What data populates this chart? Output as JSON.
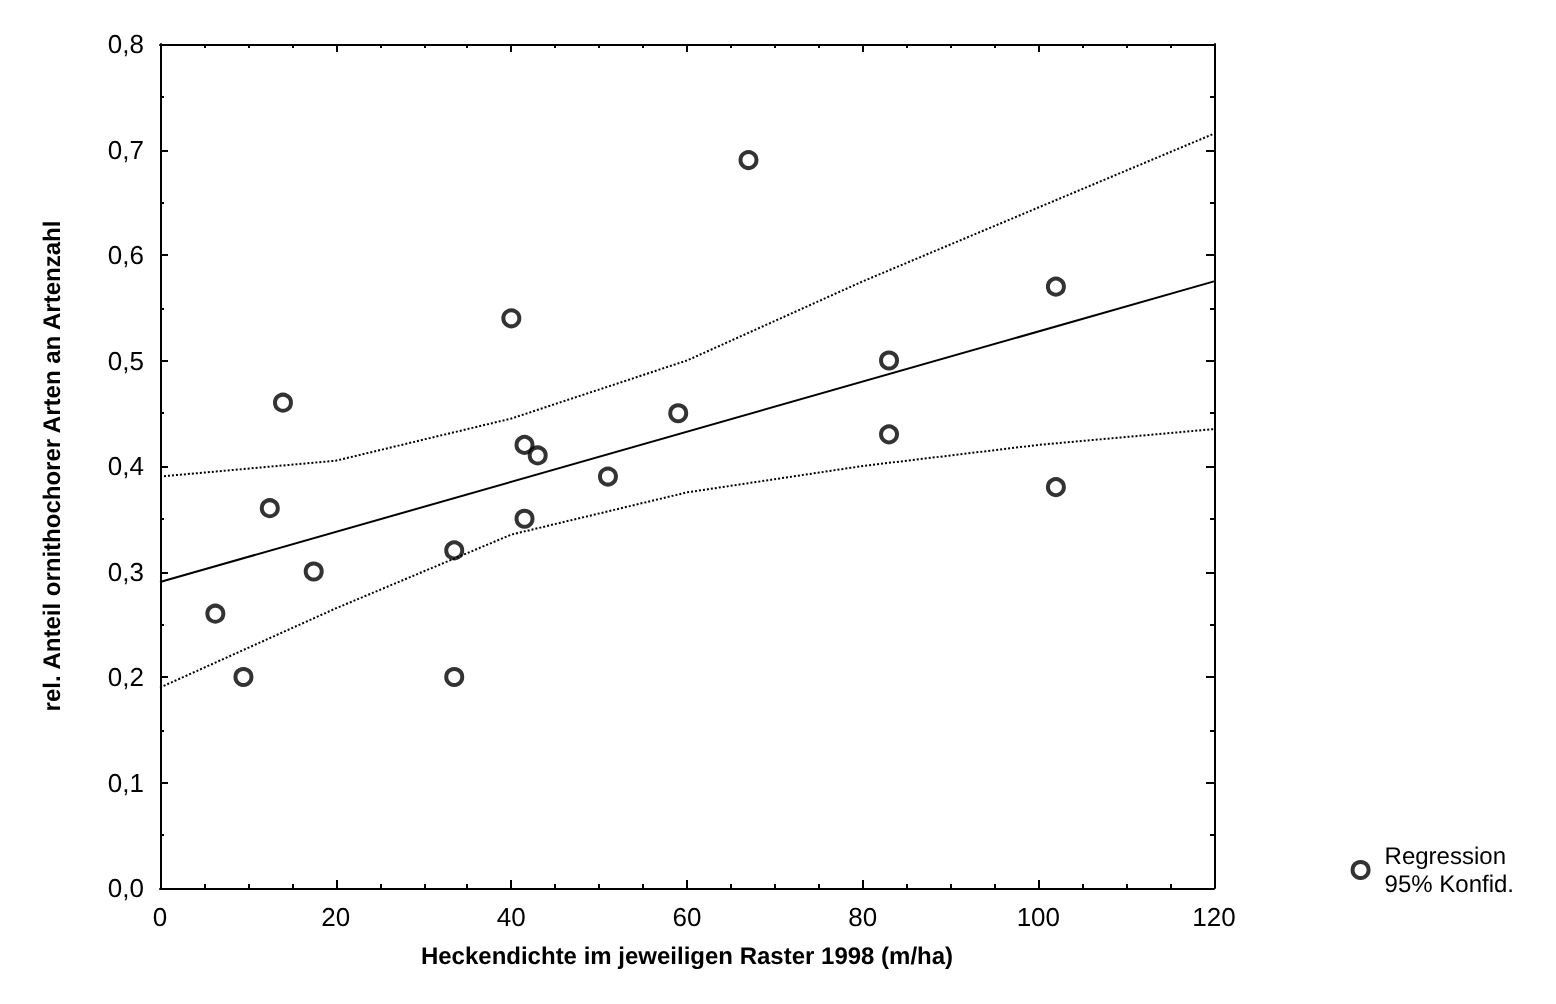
{
  "chart_data": {
    "type": "scatter",
    "xlabel": "Heckendichte im jeweiligen Raster 1998 (m/ha)",
    "ylabel": "rel. Anteil ornithochorer Arten an Artenzahl",
    "xlim": [
      0,
      120
    ],
    "xticks": [
      0,
      20,
      40,
      60,
      80,
      100,
      120
    ],
    "ylim": [
      0,
      0.8
    ],
    "yticks": [
      {
        "value": 0,
        "label": "0,0"
      },
      {
        "value": 0.1,
        "label": "0,1"
      },
      {
        "value": 0.2,
        "label": "0,2"
      },
      {
        "value": 0.3,
        "label": "0,3"
      },
      {
        "value": 0.4,
        "label": "0,4"
      },
      {
        "value": 0.5,
        "label": "0,5"
      },
      {
        "value": 0.6,
        "label": "0,6"
      },
      {
        "value": 0.7,
        "label": "0,7"
      },
      {
        "value": 0.8,
        "label": "0,8"
      }
    ],
    "grid": false,
    "legend": "bottom right",
    "series": [
      {
        "name": "Regression\n95% Konfid.",
        "marker": "circle",
        "color": "#000000",
        "x": [
          6.3,
          9.5,
          12.5,
          14,
          17.5,
          33.5,
          33.5,
          40,
          41.5,
          41.5,
          43,
          51,
          59,
          67,
          83,
          83,
          102,
          102
        ],
        "values": [
          0.26,
          0.2,
          0.36,
          0.46,
          0.3,
          0.32,
          0.2,
          0.54,
          0.42,
          0.35,
          0.41,
          0.39,
          0.45,
          0.69,
          0.5,
          0.43,
          0.57,
          0.38
        ]
      },
      {
        "type": "line",
        "marker": "none",
        "line_style": "solid",
        "color": "#000000",
        "x": [
          0,
          120
        ],
        "values": [
          0.29,
          0.575
        ]
      },
      {
        "type": "line",
        "marker": "none",
        "line_style": "dotted",
        "color": "#000000",
        "x": [
          0,
          20,
          40,
          60,
          80,
          100,
          120
        ],
        "values": [
          0.39,
          0.405,
          0.445,
          0.5,
          0.575,
          0.645,
          0.715
        ]
      },
      {
        "type": "line",
        "marker": "none",
        "line_style": "dotted",
        "color": "#000000",
        "x": [
          0,
          20,
          40,
          60,
          80,
          100,
          120
        ],
        "values": [
          0.19,
          0.265,
          0.335,
          0.375,
          0.4,
          0.42,
          0.435
        ]
      }
    ]
  }
}
